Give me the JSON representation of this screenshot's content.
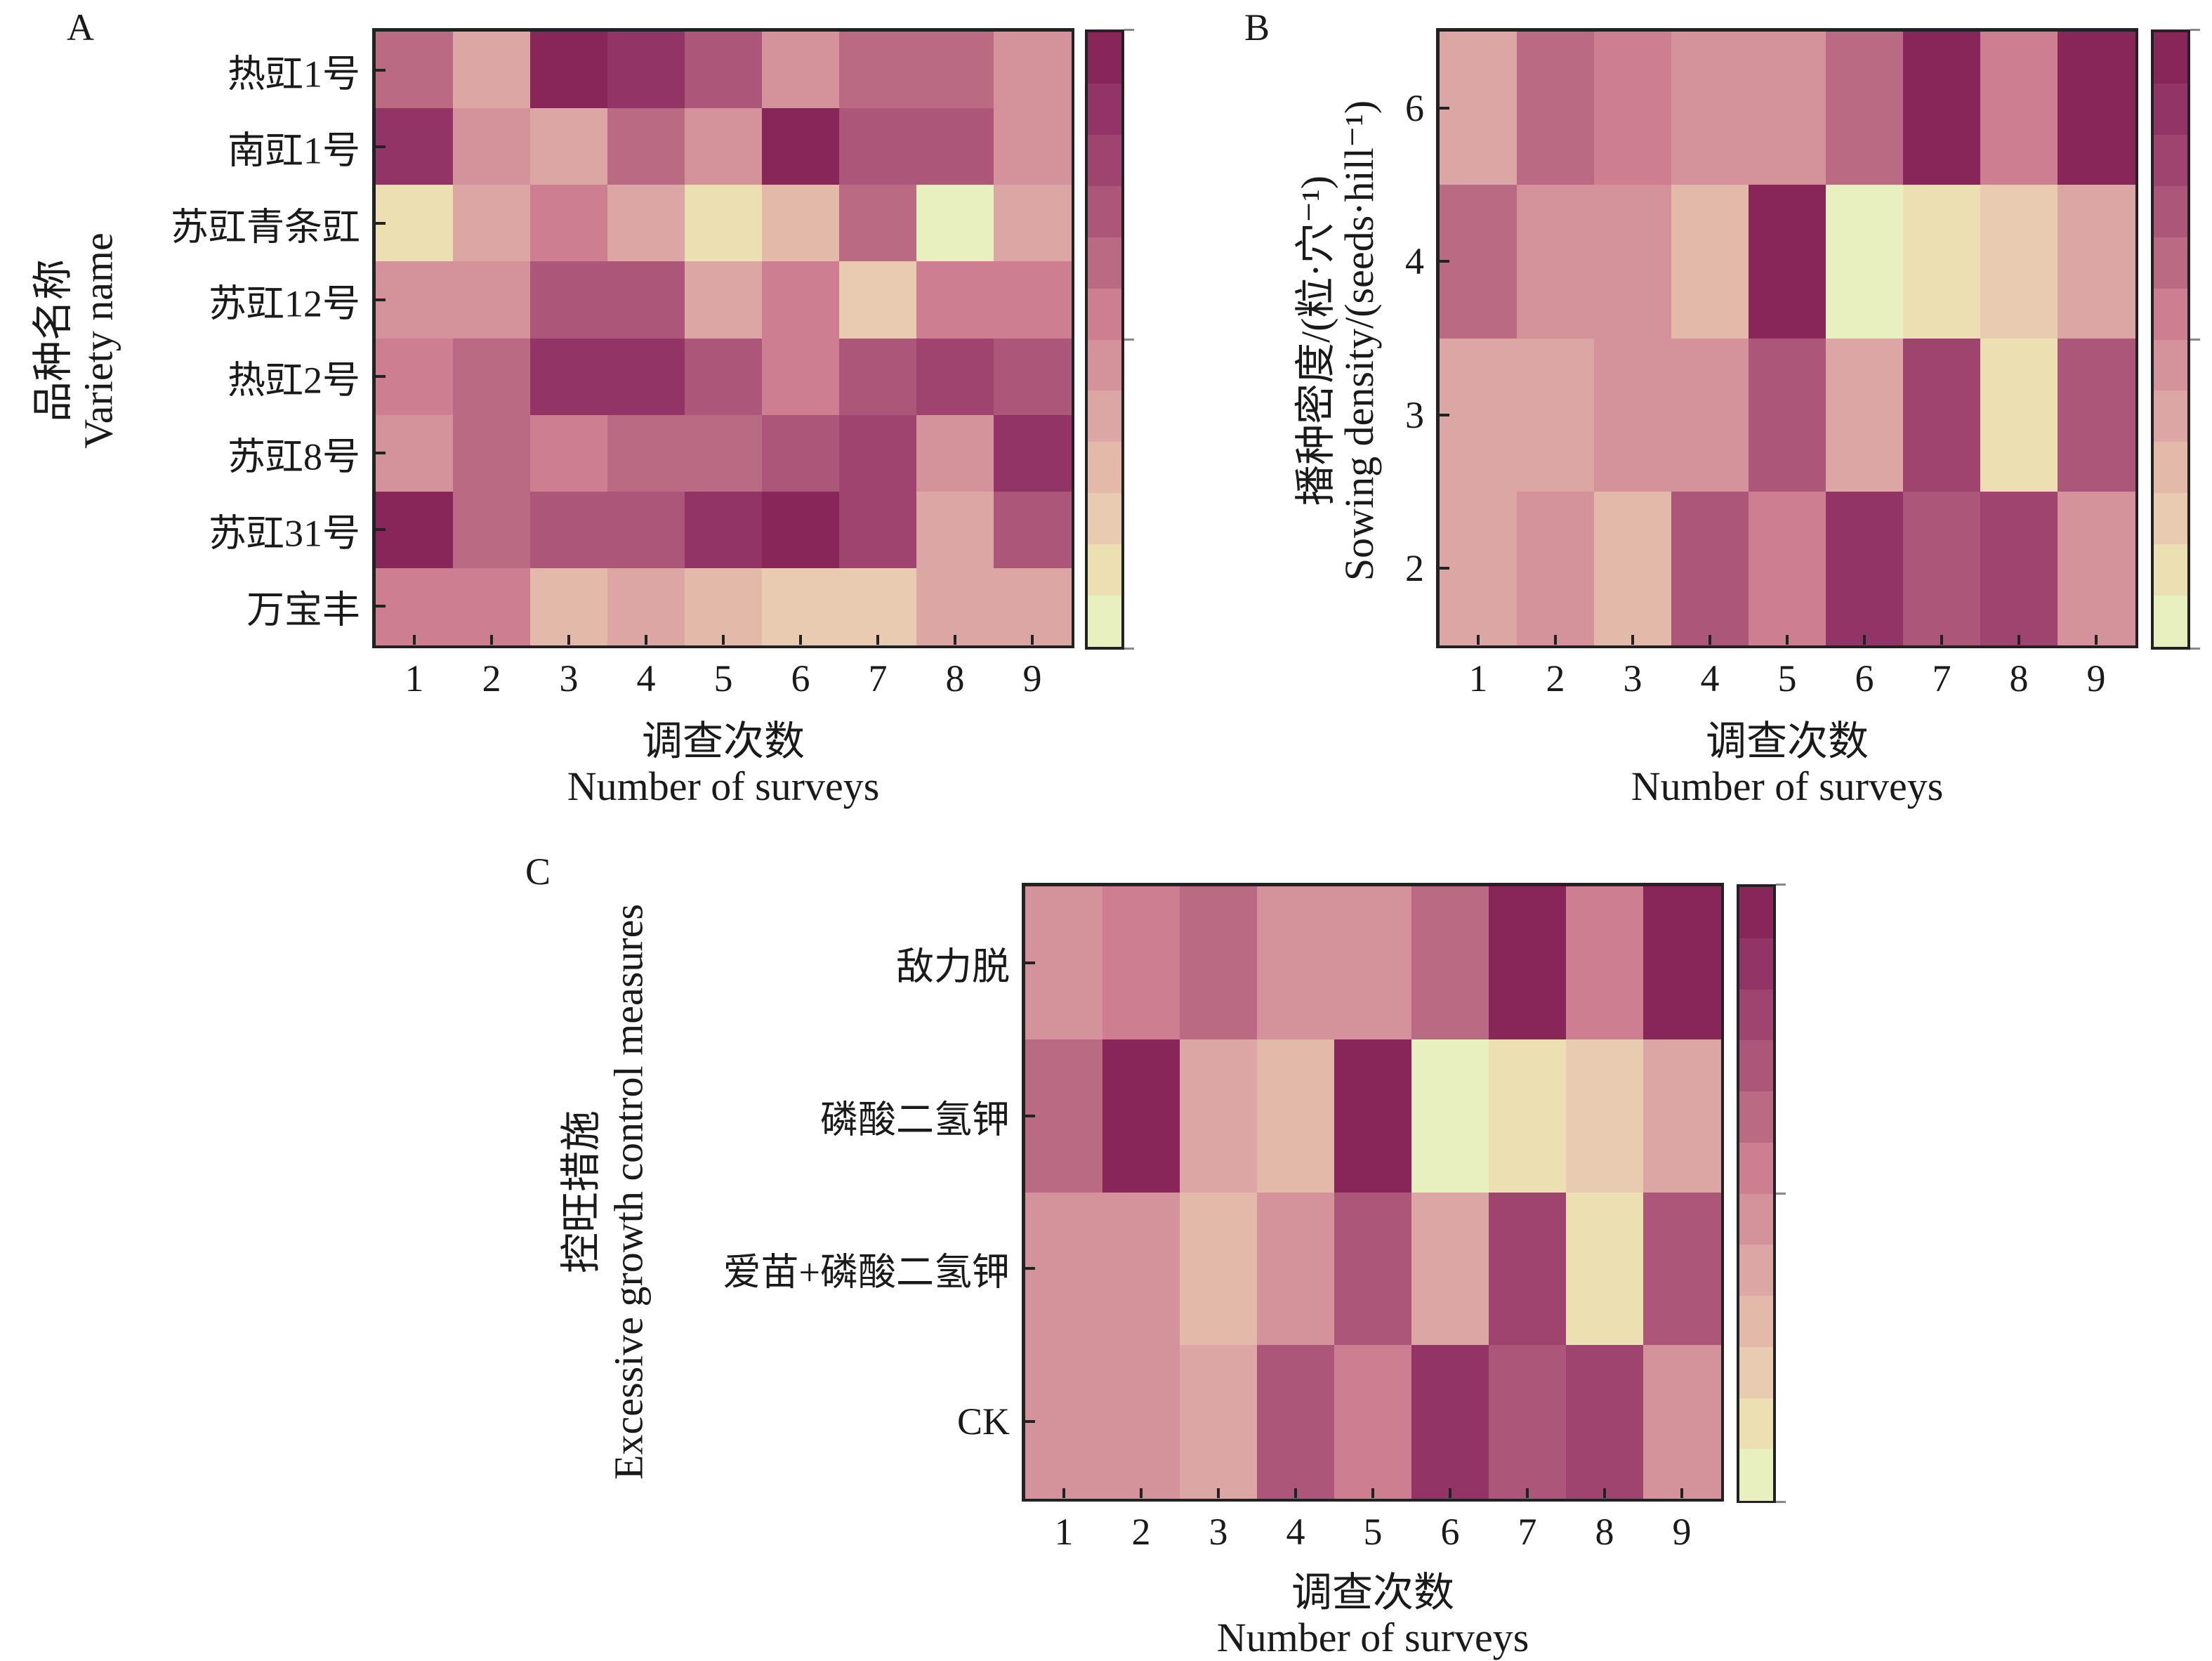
{
  "colormap": [
    "#e9f0bf",
    "#ece0b3",
    "#e8cbb0",
    "#e3b9a9",
    "#dca6a4",
    "#d4929b",
    "#cd7e91",
    "#bb6a84",
    "#ac5779",
    "#9e446f",
    "#923466",
    "#88265a"
  ],
  "chart_data": [
    {
      "type": "heatmap",
      "panel": "A",
      "levels": 12,
      "xlabel_cn": "调查次数",
      "xlabel_en": "Number of surveys",
      "ylabel_cn": "品种名称",
      "ylabel_en": "Variety name",
      "x": [
        "1",
        "2",
        "3",
        "4",
        "5",
        "6",
        "7",
        "8",
        "9"
      ],
      "y": [
        "热豇1号",
        "南豇1号",
        "苏豇青条豇",
        "苏豇12号",
        "热豇2号",
        "苏豇8号",
        "苏豇31号",
        "万宝丰"
      ],
      "values": [
        [
          7,
          4,
          11,
          10,
          8,
          5,
          7,
          7,
          5
        ],
        [
          10,
          5,
          4,
          7,
          5,
          11,
          8,
          8,
          5
        ],
        [
          1,
          4,
          6,
          4,
          1,
          3,
          7,
          0,
          4
        ],
        [
          5,
          5,
          8,
          8,
          4,
          6,
          2,
          6,
          6
        ],
        [
          6,
          7,
          10,
          10,
          8,
          6,
          8,
          9,
          8
        ],
        [
          5,
          7,
          6,
          7,
          7,
          8,
          9,
          5,
          10
        ],
        [
          11,
          7,
          8,
          8,
          10,
          11,
          9,
          4,
          8
        ],
        [
          6,
          6,
          3,
          4,
          3,
          2,
          2,
          4,
          4
        ]
      ]
    },
    {
      "type": "heatmap",
      "panel": "B",
      "levels": 12,
      "xlabel_cn": "调查次数",
      "xlabel_en": "Number of surveys",
      "ylabel_cn": "播种密度/(粒·穴⁻¹)",
      "ylabel_en": "Sowing density/(seeds·hill⁻¹)",
      "x": [
        "1",
        "2",
        "3",
        "4",
        "5",
        "6",
        "7",
        "8",
        "9"
      ],
      "y": [
        "6",
        "4",
        "3",
        "2"
      ],
      "values": [
        [
          4,
          7,
          6,
          5,
          5,
          7,
          11,
          6,
          11
        ],
        [
          7,
          5,
          5,
          3,
          11,
          0,
          1,
          2,
          4
        ],
        [
          4,
          4,
          5,
          5,
          8,
          4,
          9,
          1,
          8
        ],
        [
          4,
          5,
          3,
          8,
          6,
          10,
          8,
          9,
          5
        ]
      ]
    },
    {
      "type": "heatmap",
      "panel": "C",
      "levels": 12,
      "xlabel_cn": "调查次数",
      "xlabel_en": "Number of surveys",
      "ylabel_cn": "控旺措施",
      "ylabel_en": "Excessive growth control measures",
      "x": [
        "1",
        "2",
        "3",
        "4",
        "5",
        "6",
        "7",
        "8",
        "9"
      ],
      "y": [
        "敌力脱",
        "磷酸二氢钾",
        "爱苗+磷酸二氢钾",
        "CK"
      ],
      "values": [
        [
          5,
          6,
          7,
          5,
          5,
          7,
          11,
          6,
          11
        ],
        [
          7,
          11,
          4,
          3,
          11,
          0,
          1,
          2,
          4
        ],
        [
          5,
          5,
          3,
          5,
          8,
          4,
          9,
          1,
          8
        ],
        [
          5,
          5,
          4,
          8,
          6,
          10,
          8,
          9,
          5
        ]
      ]
    }
  ]
}
